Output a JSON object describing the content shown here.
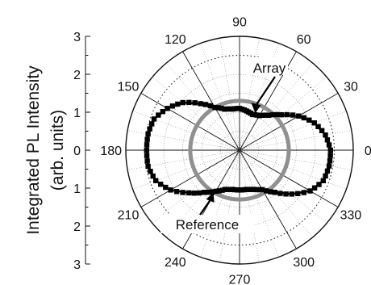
{
  "chart_data": {
    "type": "polar",
    "ylabel_line1": "Integrated PL Intensity",
    "ylabel_line2": "(arb. units)",
    "radial_axis": {
      "range": [
        0,
        3
      ],
      "ticks_top": [
        "3",
        "2",
        "1",
        "0"
      ],
      "ticks_bottom": [
        "1",
        "2",
        "3"
      ],
      "ticks": [
        3,
        2,
        1,
        0,
        1,
        2,
        3
      ]
    },
    "angle_axis": {
      "unit": "degrees",
      "major_ticks": [
        0,
        30,
        60,
        90,
        120,
        150,
        180,
        210,
        240,
        270,
        300,
        330
      ],
      "labels": [
        "0",
        "30",
        "60",
        "90",
        "120",
        "150",
        "180",
        "210",
        "240",
        "270",
        "300",
        "330"
      ],
      "minor_step": 10
    },
    "grid": {
      "circles_dotted": [
        0.5,
        1.0,
        1.5,
        2.0,
        2.5,
        3.0
      ],
      "circle_emphasized_dotted": 2.5,
      "radial_lines": true
    },
    "series": [
      {
        "name": "Array",
        "style": "black square markers",
        "color": "#000000",
        "theta": [
          0,
          10,
          20,
          30,
          40,
          50,
          60,
          70,
          80,
          90,
          100,
          110,
          120,
          130,
          140,
          150,
          160,
          170,
          180,
          190,
          200,
          210,
          220,
          230,
          240,
          250,
          260,
          270,
          280,
          290,
          300,
          310,
          320,
          330,
          340,
          350
        ],
        "r": [
          2.4,
          2.3,
          2.1,
          1.8,
          1.45,
          1.2,
          1.05,
          1.0,
          1.05,
          1.1,
          1.1,
          1.15,
          1.3,
          1.6,
          1.95,
          2.2,
          2.4,
          2.45,
          2.45,
          2.45,
          2.35,
          2.1,
          1.75,
          1.45,
          1.25,
          1.1,
          1.05,
          1.05,
          1.05,
          1.1,
          1.2,
          1.45,
          1.8,
          2.15,
          2.35,
          2.4
        ]
      },
      {
        "name": "Reference",
        "style": "grey solid line",
        "color": "#909090",
        "theta": [
          0,
          30,
          60,
          90,
          120,
          150,
          180,
          210,
          240,
          270,
          300,
          330
        ],
        "r": [
          1.3,
          1.3,
          1.3,
          1.3,
          1.3,
          1.3,
          1.3,
          1.3,
          1.3,
          1.3,
          1.3,
          1.3
        ]
      }
    ],
    "annotations": [
      {
        "text": "Array",
        "points_to_theta": 68,
        "points_to_r": 1.05
      },
      {
        "text": "Reference",
        "points_to_theta": 238,
        "points_to_r": 1.3
      }
    ]
  }
}
